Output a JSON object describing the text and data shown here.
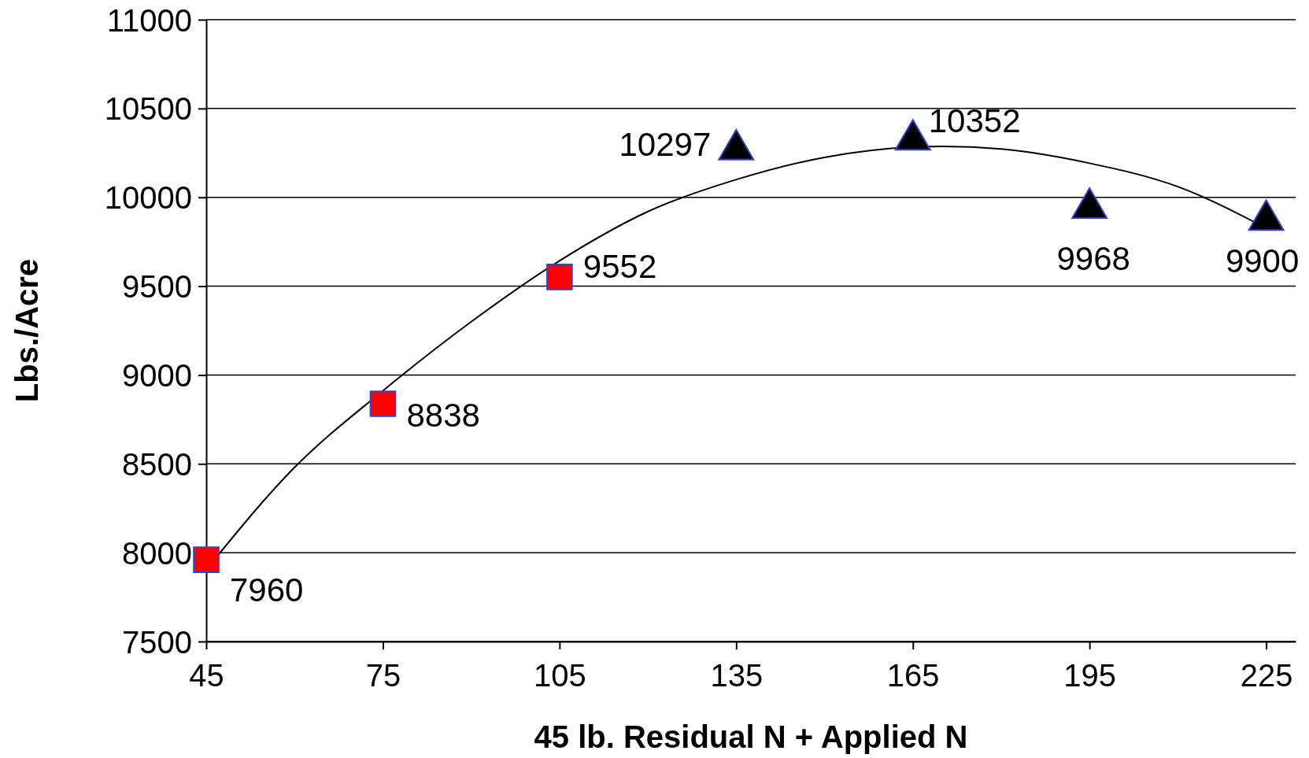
{
  "chart_data": {
    "type": "scatter",
    "xlabel": "45 lb. Residual N + Applied N",
    "ylabel": "Lbs./Acre",
    "xlim": [
      45,
      230
    ],
    "xticks": [
      45,
      75,
      105,
      135,
      165,
      195,
      225
    ],
    "ylim": [
      7500,
      11000
    ],
    "yticks": [
      7500,
      8000,
      8500,
      9000,
      9500,
      10000,
      10500,
      11000
    ],
    "grid": "y",
    "series": [
      {
        "marker": "square",
        "color": "#ff0000",
        "x": [
          45,
          75,
          105
        ],
        "values": [
          7960,
          8838,
          9552
        ],
        "value_labels": [
          "7960",
          "8838",
          "9552"
        ]
      },
      {
        "marker": "triangle",
        "color": "#000000",
        "x": [
          135,
          165,
          195,
          225
        ],
        "values": [
          10297,
          10352,
          9968,
          9900
        ],
        "value_labels": [
          "10297",
          "10352",
          "9968",
          "9900"
        ]
      },
      {
        "type": "line",
        "color": "#000000",
        "line_style": "solid",
        "x": [
          45,
          60,
          75,
          90,
          105,
          120,
          135,
          150,
          165,
          170,
          180,
          195,
          210,
          225
        ],
        "values": [
          7904,
          8480,
          8911,
          9300,
          9643,
          9920,
          10100,
          10225,
          10283,
          10287,
          10272,
          10192,
          10060,
          9826
        ]
      }
    ]
  }
}
